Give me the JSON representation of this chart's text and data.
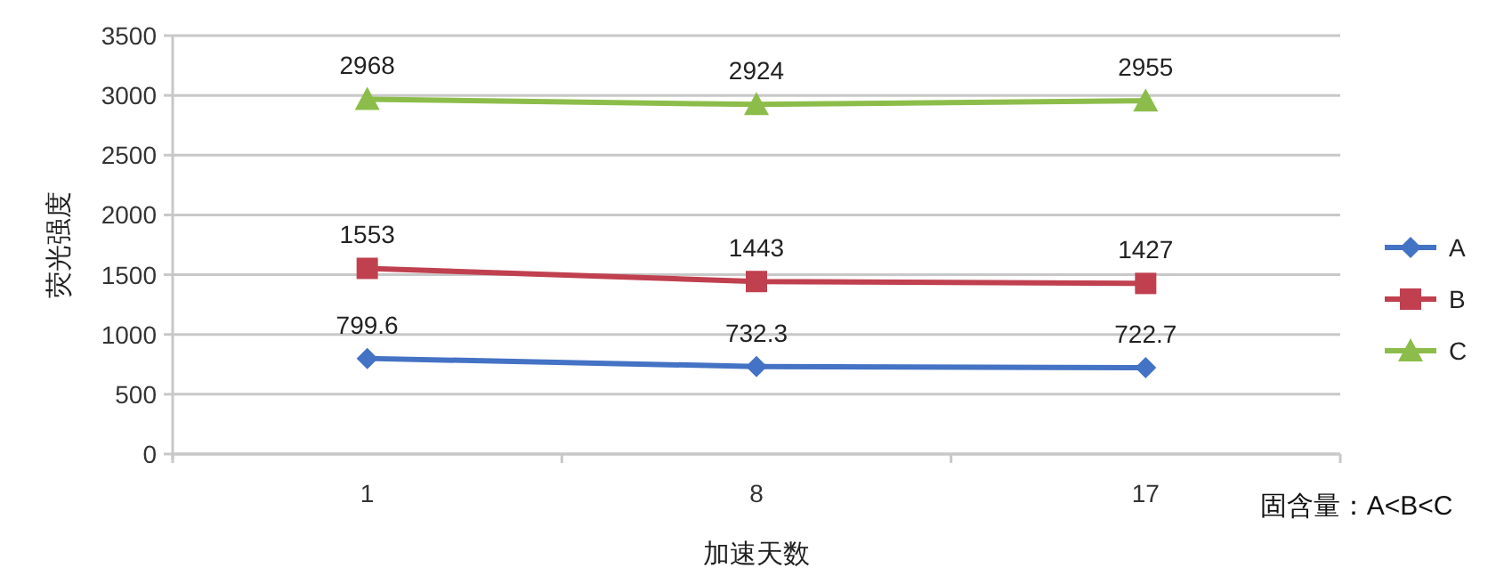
{
  "chart_data": {
    "type": "line",
    "xlabel": "加速天数",
    "ylabel": "荧光强度",
    "categories": [
      "1",
      "8",
      "17"
    ],
    "series": [
      {
        "name": "A",
        "color": "#4472c4",
        "marker": "diamond",
        "values": [
          799.6,
          732.3,
          722.7
        ]
      },
      {
        "name": "B",
        "color": "#c0404f",
        "marker": "square",
        "values": [
          1553,
          1443,
          1427
        ]
      },
      {
        "name": "C",
        "color": "#8cbd4a",
        "marker": "triangle",
        "values": [
          2968,
          2924,
          2955
        ]
      }
    ],
    "ylim": [
      0,
      3500
    ],
    "yticks": [
      0,
      500,
      1000,
      1500,
      2000,
      2500,
      3000,
      3500
    ],
    "grid": "y",
    "legend": "right",
    "data_labels": true,
    "line_style": "solid",
    "annotations": [
      "固含量：A<B<C"
    ]
  }
}
